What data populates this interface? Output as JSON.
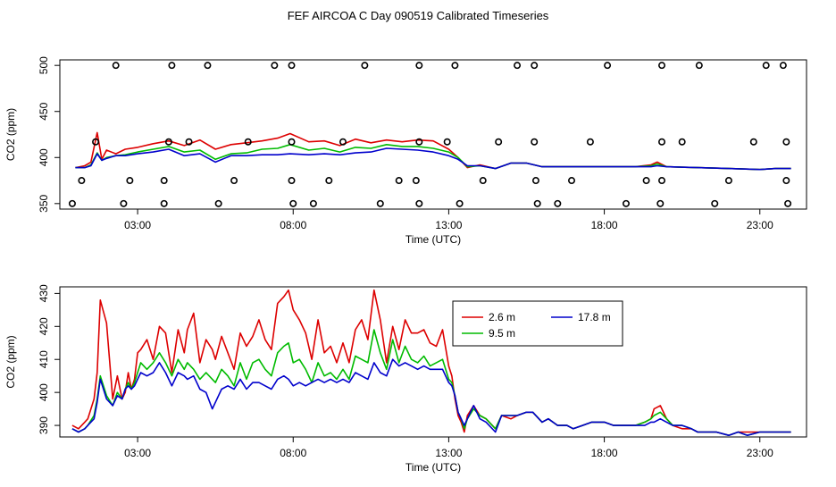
{
  "title": "FEF AIRCOA C  Day 090519  Calibrated Timeseries",
  "colors": {
    "c26": "#dd0000",
    "c95": "#00bb00",
    "c178": "#0000cc",
    "axis": "#000000"
  },
  "chart_data": [
    {
      "type": "scatter+line",
      "panel": "top",
      "xlabel": "Time (UTC)",
      "ylabel": "CO2 (ppm)",
      "xlim": [
        0.5,
        24.5
      ],
      "ylim": [
        344,
        506
      ],
      "xticks": [
        3,
        8,
        13,
        18,
        23
      ],
      "xtick_labels": [
        "03:00",
        "08:00",
        "13:00",
        "18:00",
        "23:00"
      ],
      "yticks": [
        350,
        400,
        450,
        500
      ],
      "ytick_labels": [
        "350",
        "400",
        "450",
        "500"
      ],
      "markers": {
        "y500": [
          2.3,
          4.1,
          5.25,
          7.4,
          7.95,
          10.3,
          12.05,
          13.2,
          15.2,
          15.75,
          18.1,
          19.85,
          21.05,
          23.2,
          23.75
        ],
        "y417": [
          1.65,
          4.0,
          4.65,
          6.55,
          7.95,
          9.6,
          12.05,
          12.95,
          14.6,
          15.75,
          17.55,
          19.85,
          20.5,
          22.8,
          23.85
        ],
        "y375": [
          1.2,
          2.75,
          3.85,
          6.1,
          7.95,
          9.15,
          11.4,
          11.95,
          14.1,
          15.8,
          16.95,
          19.35,
          19.85,
          22.0,
          23.85
        ],
        "y350": [
          0.9,
          2.55,
          3.85,
          5.6,
          8.0,
          8.65,
          10.8,
          12.05,
          13.35,
          15.85,
          16.5,
          18.7,
          19.8,
          21.55,
          23.9
        ]
      },
      "series": [
        {
          "name": "2.6 m",
          "x": [
            1.0,
            1.3,
            1.5,
            1.7,
            1.85,
            2.0,
            2.3,
            2.6,
            3.0,
            3.5,
            4.0,
            4.5,
            5.0,
            5.5,
            6.0,
            6.5,
            7.0,
            7.5,
            7.9,
            8.5,
            9.0,
            9.5,
            10.0,
            10.5,
            11.0,
            11.5,
            12.0,
            12.5,
            13.0,
            13.3,
            13.6,
            14.0,
            14.5,
            15.0,
            15.5,
            16.0,
            17.0,
            18.0,
            19.0,
            19.5,
            19.7,
            20.0,
            21.0,
            22.0,
            23.0,
            23.5,
            24.0
          ],
          "y": [
            389,
            391,
            395,
            427,
            398,
            408,
            404,
            409,
            411,
            415,
            418,
            413,
            419,
            409,
            414,
            416,
            418,
            421,
            426,
            417,
            418,
            413,
            420,
            416,
            419,
            417,
            419,
            418,
            409,
            400,
            389,
            392,
            388,
            394,
            394,
            390,
            390,
            390,
            390,
            392,
            395,
            390,
            389,
            388,
            387,
            388,
            388
          ]
        },
        {
          "name": "9.5 m",
          "x": [
            1.0,
            1.3,
            1.5,
            1.7,
            1.85,
            2.0,
            2.3,
            2.6,
            3.0,
            3.5,
            4.0,
            4.5,
            5.0,
            5.5,
            6.0,
            6.5,
            7.0,
            7.5,
            7.9,
            8.5,
            9.0,
            9.5,
            10.0,
            10.5,
            11.0,
            11.5,
            12.0,
            12.5,
            13.0,
            13.3,
            13.6,
            14.0,
            14.5,
            15.0,
            15.5,
            16.0,
            17.0,
            18.0,
            19.0,
            19.5,
            19.7,
            20.0,
            21.0,
            22.0,
            23.0,
            23.5,
            24.0
          ],
          "y": [
            389,
            389,
            392,
            405,
            397,
            400,
            402,
            403,
            406,
            409,
            412,
            406,
            408,
            398,
            404,
            405,
            409,
            410,
            414,
            408,
            410,
            406,
            411,
            410,
            414,
            412,
            412,
            410,
            406,
            400,
            390,
            391,
            388,
            394,
            394,
            390,
            390,
            390,
            390,
            391,
            393,
            390,
            389,
            388,
            387,
            388,
            388
          ]
        },
        {
          "name": "17.8 m",
          "x": [
            1.0,
            1.3,
            1.5,
            1.7,
            1.85,
            2.0,
            2.3,
            2.6,
            3.0,
            3.5,
            4.0,
            4.5,
            5.0,
            5.5,
            6.0,
            6.5,
            7.0,
            7.5,
            7.9,
            8.5,
            9.0,
            9.5,
            10.0,
            10.5,
            11.0,
            11.5,
            12.0,
            12.5,
            13.0,
            13.3,
            13.6,
            14.0,
            14.5,
            15.0,
            15.5,
            16.0,
            17.0,
            18.0,
            19.0,
            19.5,
            19.7,
            20.0,
            21.0,
            22.0,
            23.0,
            23.5,
            24.0
          ],
          "y": [
            389,
            389,
            391,
            404,
            397,
            399,
            402,
            402,
            404,
            406,
            409,
            402,
            404,
            395,
            402,
            402,
            403,
            403,
            404,
            403,
            404,
            403,
            405,
            406,
            410,
            409,
            408,
            406,
            402,
            398,
            391,
            391,
            388,
            394,
            394,
            390,
            390,
            390,
            390,
            390,
            391,
            390,
            389,
            388,
            387,
            388,
            388
          ]
        }
      ]
    },
    {
      "type": "line",
      "panel": "bottom",
      "xlabel": "Time (UTC)",
      "ylabel": "CO2 (ppm)",
      "xlim": [
        0.5,
        24.5
      ],
      "ylim": [
        386.5,
        432
      ],
      "xticks": [
        3,
        8,
        13,
        18,
        23
      ],
      "xtick_labels": [
        "03:00",
        "08:00",
        "13:00",
        "18:00",
        "23:00"
      ],
      "yticks": [
        390,
        400,
        410,
        420,
        430
      ],
      "ytick_labels": [
        "390",
        "400",
        "410",
        "420",
        "430"
      ],
      "legend": {
        "position": "top-right",
        "entries": [
          "2.6 m",
          "17.8 m",
          "9.5 m"
        ]
      },
      "series": [
        {
          "name": "2.6 m",
          "x": [
            0.9,
            1.1,
            1.3,
            1.4,
            1.6,
            1.7,
            1.8,
            2.0,
            2.2,
            2.35,
            2.5,
            2.6,
            2.7,
            2.8,
            2.9,
            3.0,
            3.1,
            3.3,
            3.5,
            3.7,
            3.9,
            4.1,
            4.3,
            4.5,
            4.6,
            4.8,
            5.0,
            5.2,
            5.4,
            5.5,
            5.7,
            5.9,
            6.1,
            6.3,
            6.5,
            6.7,
            6.9,
            7.1,
            7.3,
            7.5,
            7.7,
            7.85,
            8.0,
            8.2,
            8.4,
            8.6,
            8.8,
            9.0,
            9.2,
            9.4,
            9.6,
            9.8,
            10.0,
            10.2,
            10.4,
            10.6,
            10.8,
            11.0,
            11.2,
            11.4,
            11.6,
            11.8,
            12.0,
            12.2,
            12.4,
            12.6,
            12.8,
            13.0,
            13.1,
            13.2,
            13.3,
            13.4,
            13.5,
            13.6,
            13.8,
            14.0,
            14.2,
            14.5,
            14.7,
            15.0,
            15.2,
            15.5,
            15.7,
            16.0,
            16.2,
            16.5,
            16.8,
            17.0,
            17.3,
            17.6,
            18.0,
            18.3,
            18.6,
            19.0,
            19.3,
            19.5,
            19.6,
            19.8,
            20.0,
            20.2,
            20.5,
            20.8,
            21.0,
            21.3,
            21.6,
            22.0,
            22.3,
            22.6,
            23.0,
            23.3,
            23.6,
            24.0
          ],
          "y": [
            390,
            389,
            391,
            392,
            398,
            406,
            428,
            421,
            398,
            405,
            398,
            400,
            406,
            401,
            404,
            412,
            413,
            416,
            410,
            420,
            418,
            406,
            419,
            412,
            419,
            424,
            409,
            416,
            413,
            410,
            417,
            412,
            407,
            418,
            414,
            417,
            422,
            416,
            413,
            427,
            429,
            431,
            425,
            422,
            418,
            410,
            422,
            412,
            414,
            409,
            415,
            409,
            419,
            422,
            416,
            431,
            422,
            409,
            420,
            413,
            422,
            418,
            418,
            419,
            415,
            414,
            419,
            408,
            405,
            398,
            393,
            391,
            388,
            393,
            396,
            393,
            392,
            389,
            393,
            392,
            393,
            394,
            394,
            391,
            392,
            390,
            390,
            389,
            390,
            391,
            391,
            390,
            390,
            390,
            391,
            392,
            395,
            396,
            392,
            390,
            389,
            389,
            388,
            388,
            388,
            387,
            388,
            388,
            388,
            388,
            388,
            388
          ]
        },
        {
          "name": "9.5 m",
          "x": [
            0.9,
            1.1,
            1.3,
            1.4,
            1.6,
            1.7,
            1.8,
            2.0,
            2.2,
            2.35,
            2.5,
            2.6,
            2.7,
            2.8,
            2.9,
            3.0,
            3.1,
            3.3,
            3.5,
            3.7,
            3.9,
            4.1,
            4.3,
            4.5,
            4.6,
            4.8,
            5.0,
            5.2,
            5.4,
            5.5,
            5.7,
            5.9,
            6.1,
            6.3,
            6.5,
            6.7,
            6.9,
            7.1,
            7.3,
            7.5,
            7.7,
            7.85,
            8.0,
            8.2,
            8.4,
            8.6,
            8.8,
            9.0,
            9.2,
            9.4,
            9.6,
            9.8,
            10.0,
            10.2,
            10.4,
            10.6,
            10.8,
            11.0,
            11.2,
            11.4,
            11.6,
            11.8,
            12.0,
            12.2,
            12.4,
            12.6,
            12.8,
            13.0,
            13.1,
            13.2,
            13.3,
            13.4,
            13.5,
            13.6,
            13.8,
            14.0,
            14.2,
            14.5,
            14.7,
            15.0,
            15.2,
            15.5,
            15.7,
            16.0,
            16.2,
            16.5,
            16.8,
            17.0,
            17.3,
            17.6,
            18.0,
            18.3,
            18.6,
            19.0,
            19.3,
            19.5,
            19.6,
            19.8,
            20.0,
            20.2,
            20.5,
            20.8,
            21.0,
            21.3,
            21.6,
            22.0,
            22.3,
            22.6,
            23.0,
            23.3,
            23.6,
            24.0
          ],
          "y": [
            389,
            388,
            389,
            390,
            393,
            398,
            405,
            399,
            396,
            400,
            398,
            401,
            403,
            401,
            403,
            406,
            409,
            407,
            409,
            412,
            409,
            405,
            410,
            407,
            409,
            407,
            404,
            406,
            404,
            403,
            407,
            405,
            402,
            409,
            404,
            409,
            410,
            407,
            405,
            412,
            414,
            415,
            409,
            410,
            407,
            403,
            409,
            405,
            406,
            404,
            407,
            404,
            411,
            410,
            409,
            419,
            412,
            407,
            416,
            409,
            414,
            410,
            409,
            411,
            408,
            409,
            410,
            404,
            403,
            399,
            394,
            392,
            389,
            392,
            395,
            393,
            392,
            389,
            393,
            393,
            393,
            394,
            394,
            391,
            392,
            390,
            390,
            389,
            390,
            391,
            391,
            390,
            390,
            390,
            391,
            392,
            393,
            394,
            392,
            390,
            390,
            389,
            388,
            388,
            388,
            387,
            388,
            387,
            388,
            388,
            388,
            388
          ]
        },
        {
          "name": "17.8 m",
          "x": [
            0.9,
            1.1,
            1.3,
            1.4,
            1.6,
            1.7,
            1.8,
            2.0,
            2.2,
            2.35,
            2.5,
            2.6,
            2.7,
            2.8,
            2.9,
            3.0,
            3.1,
            3.3,
            3.5,
            3.7,
            3.9,
            4.1,
            4.3,
            4.5,
            4.6,
            4.8,
            5.0,
            5.2,
            5.4,
            5.5,
            5.7,
            5.9,
            6.1,
            6.3,
            6.5,
            6.7,
            6.9,
            7.1,
            7.3,
            7.5,
            7.7,
            7.85,
            8.0,
            8.2,
            8.4,
            8.6,
            8.8,
            9.0,
            9.2,
            9.4,
            9.6,
            9.8,
            10.0,
            10.2,
            10.4,
            10.6,
            10.8,
            11.0,
            11.2,
            11.4,
            11.6,
            11.8,
            12.0,
            12.2,
            12.4,
            12.6,
            12.8,
            13.0,
            13.1,
            13.2,
            13.3,
            13.4,
            13.5,
            13.6,
            13.8,
            14.0,
            14.2,
            14.5,
            14.7,
            15.0,
            15.2,
            15.5,
            15.7,
            16.0,
            16.2,
            16.5,
            16.8,
            17.0,
            17.3,
            17.6,
            18.0,
            18.3,
            18.6,
            19.0,
            19.3,
            19.5,
            19.6,
            19.8,
            20.0,
            20.2,
            20.5,
            20.8,
            21.0,
            21.3,
            21.6,
            22.0,
            22.3,
            22.6,
            23.0,
            23.3,
            23.6,
            24.0
          ],
          "y": [
            389,
            388,
            389,
            390,
            392,
            397,
            404,
            398,
            396,
            399,
            398,
            401,
            402,
            401,
            402,
            404,
            406,
            405,
            406,
            409,
            406,
            402,
            406,
            405,
            404,
            405,
            401,
            400,
            395,
            397,
            401,
            402,
            401,
            404,
            401,
            403,
            403,
            402,
            401,
            404,
            405,
            404,
            402,
            403,
            402,
            403,
            404,
            403,
            404,
            403,
            404,
            403,
            406,
            405,
            404,
            409,
            406,
            405,
            410,
            408,
            409,
            408,
            407,
            408,
            407,
            407,
            407,
            403,
            402,
            399,
            394,
            392,
            390,
            392,
            396,
            392,
            391,
            388,
            393,
            393,
            393,
            394,
            394,
            391,
            392,
            390,
            390,
            389,
            390,
            391,
            391,
            390,
            390,
            390,
            390,
            391,
            391,
            392,
            391,
            390,
            390,
            389,
            388,
            388,
            388,
            387,
            388,
            387,
            388,
            388,
            388,
            388
          ]
        }
      ]
    }
  ]
}
